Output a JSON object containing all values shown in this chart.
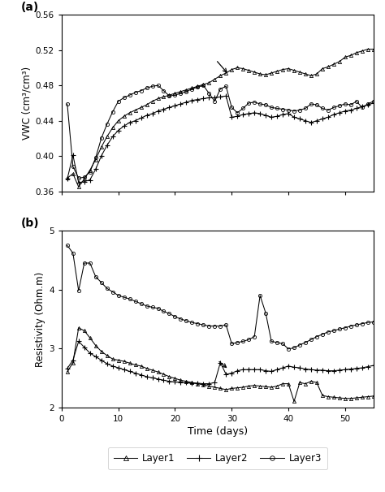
{
  "panel_a_label": "(a)",
  "panel_b_label": "(b)",
  "ylabel_a": "VWC (cm³/cm³)",
  "ylabel_b": "Resistivity (Ohm.m)",
  "xlabel": "Time (days)",
  "ylim_a": [
    0.36,
    0.56
  ],
  "ylim_b": [
    2.0,
    5.0
  ],
  "yticks_a": [
    0.36,
    0.4,
    0.44,
    0.48,
    0.52,
    0.56
  ],
  "yticks_b": [
    2,
    3,
    4,
    5
  ],
  "xlim": [
    0,
    55
  ],
  "xticks": [
    0,
    10,
    20,
    30,
    40,
    50
  ],
  "color": "black",
  "layer1_vwc_x": [
    1,
    2,
    3,
    4,
    5,
    6,
    7,
    8,
    9,
    10,
    11,
    12,
    13,
    14,
    15,
    16,
    17,
    18,
    19,
    20,
    21,
    22,
    23,
    24,
    25,
    26,
    27,
    28,
    29,
    30,
    31,
    32,
    33,
    34,
    35,
    36,
    37,
    38,
    39,
    40,
    41,
    42,
    43,
    44,
    45,
    46,
    47,
    48,
    49,
    50,
    51,
    52,
    53,
    54,
    55
  ],
  "layer1_vwc_y": [
    0.375,
    0.38,
    0.365,
    0.374,
    0.384,
    0.396,
    0.41,
    0.422,
    0.432,
    0.44,
    0.445,
    0.449,
    0.452,
    0.455,
    0.458,
    0.462,
    0.465,
    0.467,
    0.469,
    0.471,
    0.473,
    0.475,
    0.477,
    0.479,
    0.481,
    0.483,
    0.487,
    0.491,
    0.494,
    0.498,
    0.5,
    0.499,
    0.497,
    0.495,
    0.493,
    0.492,
    0.494,
    0.496,
    0.498,
    0.499,
    0.497,
    0.495,
    0.493,
    0.491,
    0.493,
    0.499,
    0.501,
    0.504,
    0.507,
    0.512,
    0.514,
    0.517,
    0.519,
    0.521,
    0.521
  ],
  "layer2_vwc_x": [
    1,
    2,
    3,
    4,
    5,
    6,
    7,
    8,
    9,
    10,
    11,
    12,
    13,
    14,
    15,
    16,
    17,
    18,
    19,
    20,
    21,
    22,
    23,
    24,
    25,
    26,
    27,
    28,
    29,
    30,
    31,
    32,
    33,
    34,
    35,
    36,
    37,
    38,
    39,
    40,
    41,
    42,
    43,
    44,
    45,
    46,
    47,
    48,
    49,
    50,
    51,
    52,
    53,
    54,
    55
  ],
  "layer2_vwc_y": [
    0.374,
    0.401,
    0.37,
    0.371,
    0.373,
    0.385,
    0.4,
    0.412,
    0.422,
    0.429,
    0.434,
    0.438,
    0.44,
    0.443,
    0.446,
    0.448,
    0.451,
    0.453,
    0.455,
    0.457,
    0.459,
    0.461,
    0.463,
    0.464,
    0.465,
    0.466,
    0.466,
    0.467,
    0.468,
    0.444,
    0.445,
    0.447,
    0.448,
    0.449,
    0.448,
    0.446,
    0.444,
    0.445,
    0.447,
    0.448,
    0.444,
    0.442,
    0.44,
    0.438,
    0.44,
    0.442,
    0.444,
    0.447,
    0.449,
    0.451,
    0.452,
    0.454,
    0.456,
    0.458,
    0.46
  ],
  "layer3_vwc_x": [
    1,
    2,
    3,
    4,
    5,
    6,
    7,
    8,
    9,
    10,
    11,
    12,
    13,
    14,
    15,
    16,
    17,
    18,
    19,
    20,
    21,
    22,
    23,
    24,
    25,
    26,
    27,
    28,
    29,
    30,
    31,
    32,
    33,
    34,
    35,
    36,
    37,
    38,
    39,
    40,
    41,
    42,
    43,
    44,
    45,
    46,
    47,
    48,
    49,
    50,
    51,
    52,
    53,
    54,
    55
  ],
  "layer3_vwc_y": [
    0.459,
    0.388,
    0.375,
    0.376,
    0.382,
    0.398,
    0.42,
    0.436,
    0.45,
    0.462,
    0.466,
    0.469,
    0.472,
    0.474,
    0.477,
    0.479,
    0.48,
    0.474,
    0.468,
    0.469,
    0.471,
    0.473,
    0.476,
    0.478,
    0.48,
    0.471,
    0.462,
    0.476,
    0.479,
    0.455,
    0.449,
    0.454,
    0.46,
    0.461,
    0.459,
    0.458,
    0.455,
    0.454,
    0.453,
    0.452,
    0.451,
    0.452,
    0.454,
    0.459,
    0.458,
    0.454,
    0.452,
    0.455,
    0.457,
    0.459,
    0.458,
    0.462,
    0.455,
    0.459,
    0.462
  ],
  "layer1_res_x": [
    1,
    2,
    3,
    4,
    5,
    6,
    7,
    8,
    9,
    10,
    11,
    12,
    13,
    14,
    15,
    16,
    17,
    18,
    19,
    20,
    21,
    22,
    23,
    24,
    25,
    26,
    27,
    28,
    29,
    30,
    31,
    32,
    33,
    34,
    35,
    36,
    37,
    38,
    39,
    40,
    41,
    42,
    43,
    44,
    45,
    46,
    47,
    48,
    49,
    50,
    51,
    52,
    53,
    54,
    55
  ],
  "layer1_res_y": [
    2.6,
    2.76,
    3.35,
    3.3,
    3.18,
    3.05,
    2.95,
    2.88,
    2.82,
    2.8,
    2.78,
    2.75,
    2.72,
    2.7,
    2.66,
    2.63,
    2.6,
    2.56,
    2.52,
    2.49,
    2.46,
    2.44,
    2.42,
    2.4,
    2.38,
    2.36,
    2.34,
    2.32,
    2.3,
    2.32,
    2.33,
    2.34,
    2.36,
    2.37,
    2.36,
    2.35,
    2.34,
    2.36,
    2.4,
    2.4,
    2.1,
    2.42,
    2.4,
    2.44,
    2.42,
    2.2,
    2.18,
    2.17,
    2.16,
    2.15,
    2.15,
    2.16,
    2.17,
    2.18,
    2.19
  ],
  "layer2_res_x": [
    1,
    2,
    3,
    4,
    5,
    6,
    7,
    8,
    9,
    10,
    11,
    12,
    13,
    14,
    15,
    16,
    17,
    18,
    19,
    20,
    21,
    22,
    23,
    24,
    25,
    26,
    27,
    28,
    29,
    30,
    31,
    32,
    33,
    34,
    35,
    36,
    37,
    38,
    39,
    40,
    41,
    42,
    43,
    44,
    45,
    46,
    47,
    48,
    49,
    50,
    51,
    52,
    53,
    54,
    55
  ],
  "layer2_res_y": [
    2.66,
    2.8,
    3.12,
    3.02,
    2.92,
    2.86,
    2.8,
    2.74,
    2.7,
    2.67,
    2.64,
    2.61,
    2.58,
    2.55,
    2.52,
    2.5,
    2.48,
    2.46,
    2.44,
    2.43,
    2.42,
    2.42,
    2.41,
    2.41,
    2.4,
    2.4,
    2.42,
    2.76,
    2.56,
    2.58,
    2.62,
    2.64,
    2.64,
    2.64,
    2.64,
    2.62,
    2.61,
    2.64,
    2.67,
    2.7,
    2.68,
    2.67,
    2.65,
    2.64,
    2.63,
    2.63,
    2.62,
    2.62,
    2.63,
    2.64,
    2.65,
    2.66,
    2.67,
    2.69,
    2.71
  ],
  "layer3_res_x": [
    1,
    2,
    3,
    4,
    5,
    6,
    7,
    8,
    9,
    10,
    11,
    12,
    13,
    14,
    15,
    16,
    17,
    18,
    19,
    20,
    21,
    22,
    23,
    24,
    25,
    26,
    27,
    28,
    29,
    30,
    31,
    32,
    33,
    34,
    35,
    36,
    37,
    38,
    39,
    40,
    41,
    42,
    43,
    44,
    45,
    46,
    47,
    48,
    49,
    50,
    51,
    52,
    53,
    54,
    55
  ],
  "layer3_res_y": [
    4.75,
    4.62,
    3.98,
    4.45,
    4.45,
    4.22,
    4.12,
    4.02,
    3.96,
    3.9,
    3.87,
    3.84,
    3.8,
    3.76,
    3.72,
    3.7,
    3.68,
    3.63,
    3.59,
    3.54,
    3.5,
    3.47,
    3.44,
    3.42,
    3.4,
    3.38,
    3.38,
    3.38,
    3.4,
    3.08,
    3.1,
    3.12,
    3.15,
    3.2,
    3.9,
    3.6,
    3.12,
    3.1,
    3.08,
    2.99,
    3.01,
    3.06,
    3.1,
    3.15,
    3.2,
    3.24,
    3.28,
    3.3,
    3.33,
    3.35,
    3.38,
    3.4,
    3.42,
    3.44,
    3.45
  ]
}
